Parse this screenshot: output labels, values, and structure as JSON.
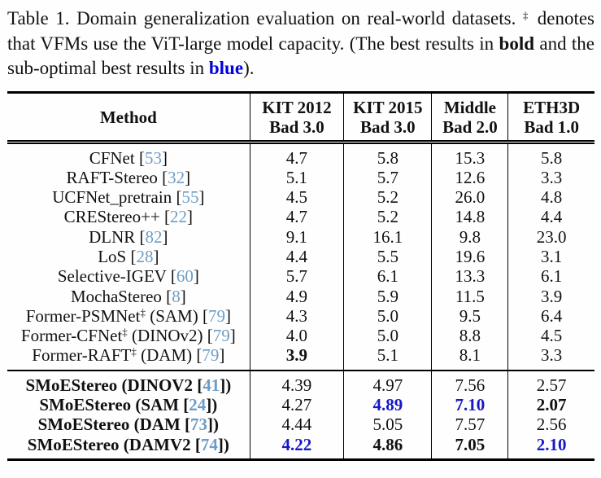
{
  "colors": {
    "text": "#111111",
    "accent_blue": "#0202dd",
    "value_blue": "#1717c6",
    "citation_blue": "#6d9dc5"
  },
  "caption": {
    "segments": [
      {
        "t": "Table 1. Domain generalization evaluation on real-world datasets. "
      },
      {
        "t": "‡",
        "s": "sup"
      },
      {
        "t": " denotes that VFMs use the ViT-large model capacity. (The best results in "
      },
      {
        "t": "bold",
        "s": "b"
      },
      {
        "t": " and the sub-optimal best results in "
      },
      {
        "t": "blue",
        "s": "bb"
      },
      {
        "t": ")."
      }
    ]
  },
  "table": {
    "columns": [
      {
        "line1": "Method",
        "line2": ""
      },
      {
        "line1": "KIT 2012",
        "line2": "Bad 3.0"
      },
      {
        "line1": "KIT 2015",
        "line2": "Bad 3.0"
      },
      {
        "line1": "Middle",
        "line2": "Bad 2.0"
      },
      {
        "line1": "ETH3D",
        "line2": "Bad 1.0"
      }
    ],
    "groups": [
      {
        "name": "baseline-methods",
        "bold_method": false,
        "rows": [
          {
            "method": [
              {
                "t": "CFNet ["
              },
              {
                "t": "53",
                "s": "cite"
              },
              {
                "t": "]"
              }
            ],
            "values": [
              {
                "v": "4.7"
              },
              {
                "v": "5.8"
              },
              {
                "v": "15.3"
              },
              {
                "v": "5.8"
              }
            ]
          },
          {
            "method": [
              {
                "t": "RAFT-Stereo ["
              },
              {
                "t": "32",
                "s": "cite"
              },
              {
                "t": "]"
              }
            ],
            "values": [
              {
                "v": "5.1"
              },
              {
                "v": "5.7"
              },
              {
                "v": "12.6"
              },
              {
                "v": "3.3"
              }
            ]
          },
          {
            "method": [
              {
                "t": "UCFNet_pretrain ["
              },
              {
                "t": "55",
                "s": "cite"
              },
              {
                "t": "]"
              }
            ],
            "values": [
              {
                "v": "4.5"
              },
              {
                "v": "5.2"
              },
              {
                "v": "26.0"
              },
              {
                "v": "4.8"
              }
            ]
          },
          {
            "method": [
              {
                "t": "CREStereo++ ["
              },
              {
                "t": "22",
                "s": "cite"
              },
              {
                "t": "]"
              }
            ],
            "values": [
              {
                "v": "4.7"
              },
              {
                "v": "5.2"
              },
              {
                "v": "14.8"
              },
              {
                "v": "4.4"
              }
            ]
          },
          {
            "method": [
              {
                "t": "DLNR ["
              },
              {
                "t": "82",
                "s": "cite"
              },
              {
                "t": "]"
              }
            ],
            "values": [
              {
                "v": "9.1"
              },
              {
                "v": "16.1"
              },
              {
                "v": "9.8"
              },
              {
                "v": "23.0"
              }
            ]
          },
          {
            "method": [
              {
                "t": "LoS ["
              },
              {
                "t": "28",
                "s": "cite"
              },
              {
                "t": "]"
              }
            ],
            "values": [
              {
                "v": "4.4"
              },
              {
                "v": "5.5"
              },
              {
                "v": "19.6"
              },
              {
                "v": "3.1"
              }
            ]
          },
          {
            "method": [
              {
                "t": "Selective-IGEV ["
              },
              {
                "t": "60",
                "s": "cite"
              },
              {
                "t": "]"
              }
            ],
            "values": [
              {
                "v": "5.7"
              },
              {
                "v": "6.1"
              },
              {
                "v": "13.3"
              },
              {
                "v": "6.1"
              }
            ]
          },
          {
            "method": [
              {
                "t": "MochaStereo ["
              },
              {
                "t": "8",
                "s": "cite"
              },
              {
                "t": "]"
              }
            ],
            "values": [
              {
                "v": "4.9"
              },
              {
                "v": "5.9"
              },
              {
                "v": "11.5"
              },
              {
                "v": "3.9"
              }
            ]
          },
          {
            "method": [
              {
                "t": "Former-PSMNet"
              },
              {
                "t": "‡",
                "s": "sup"
              },
              {
                "t": " (SAM) ["
              },
              {
                "t": "79",
                "s": "cite"
              },
              {
                "t": "]"
              }
            ],
            "values": [
              {
                "v": "4.3"
              },
              {
                "v": "5.0"
              },
              {
                "v": "9.5"
              },
              {
                "v": "6.4"
              }
            ]
          },
          {
            "method": [
              {
                "t": "Former-CFNet"
              },
              {
                "t": "‡",
                "s": "sup"
              },
              {
                "t": " (DINOv2) ["
              },
              {
                "t": "79",
                "s": "cite"
              },
              {
                "t": "]"
              }
            ],
            "values": [
              {
                "v": "4.0"
              },
              {
                "v": "5.0"
              },
              {
                "v": "8.8"
              },
              {
                "v": "4.5"
              }
            ]
          },
          {
            "method": [
              {
                "t": "Former-RAFT"
              },
              {
                "t": "‡",
                "s": "sup"
              },
              {
                "t": " (DAM) ["
              },
              {
                "t": "79",
                "s": "cite"
              },
              {
                "t": "]"
              }
            ],
            "values": [
              {
                "v": "3.9",
                "s": "b"
              },
              {
                "v": "5.1"
              },
              {
                "v": "8.1"
              },
              {
                "v": "3.3"
              }
            ]
          }
        ]
      },
      {
        "name": "smoestereo-methods",
        "bold_method": true,
        "rows": [
          {
            "method": [
              {
                "t": "SMoEStereo (DINOV2 ["
              },
              {
                "t": "41",
                "s": "cite"
              },
              {
                "t": "])"
              }
            ],
            "values": [
              {
                "v": "4.39"
              },
              {
                "v": "4.97"
              },
              {
                "v": "7.56"
              },
              {
                "v": "2.57"
              }
            ]
          },
          {
            "method": [
              {
                "t": "SMoEStereo (SAM ["
              },
              {
                "t": "24",
                "s": "cite"
              },
              {
                "t": "])"
              }
            ],
            "values": [
              {
                "v": "4.27"
              },
              {
                "v": "4.89",
                "s": "bb"
              },
              {
                "v": "7.10",
                "s": "bb"
              },
              {
                "v": "2.07",
                "s": "b"
              }
            ]
          },
          {
            "method": [
              {
                "t": "SMoEStereo (DAM ["
              },
              {
                "t": "73",
                "s": "cite"
              },
              {
                "t": "])"
              }
            ],
            "values": [
              {
                "v": "4.44"
              },
              {
                "v": "5.05"
              },
              {
                "v": "7.57"
              },
              {
                "v": "2.56"
              }
            ]
          },
          {
            "method": [
              {
                "t": "SMoEStereo (DAMV2 ["
              },
              {
                "t": "74",
                "s": "cite"
              },
              {
                "t": "])"
              }
            ],
            "values": [
              {
                "v": "4.22",
                "s": "bb"
              },
              {
                "v": "4.86",
                "s": "b"
              },
              {
                "v": "7.05",
                "s": "b"
              },
              {
                "v": "2.10",
                "s": "bb"
              }
            ]
          }
        ]
      }
    ]
  }
}
